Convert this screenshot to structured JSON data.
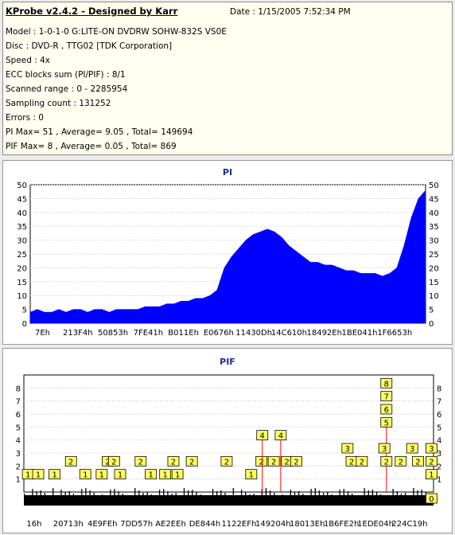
{
  "header": {
    "title": "KProbe v2.4.2 - Designed by Karr",
    "date_label": "Date : 1/15/2005 7:52:34 PM",
    "lines": [
      "Model : 1-0-1-0 G:LITE-ON DVDRW SOHW-832S  VS0E",
      "Disc : DVD-R , TTG02 [TDK Corporation]",
      "Speed : 4x",
      "ECC blocks sum (PI/PIF) : 8/1",
      "Scanned range : 0 - 2285954",
      "Sampling count : 131252",
      "Errors : 0",
      "PI Max= 51 , Average= 9.05 , Total= 149694",
      "PIF Max= 8 , Average= 0.05 , Total= 869"
    ]
  },
  "chart_data": [
    {
      "type": "area",
      "title": "PI",
      "ylim": [
        0,
        50
      ],
      "yticks": [
        0,
        5,
        10,
        15,
        20,
        25,
        30,
        35,
        40,
        45,
        50
      ],
      "x_tick_labels": [
        "7Eh",
        "213F4h",
        "50853h",
        "7FE41h",
        "B011Eh",
        "E0676h",
        "11430Dh",
        "14C610h",
        "18492Eh",
        "1BE041h",
        "1F6653h"
      ],
      "grid": true,
      "color": "#0000ff",
      "series": [
        {
          "values": [
            4,
            5,
            4,
            4,
            5,
            4,
            5,
            5,
            4,
            5,
            5,
            4,
            5,
            5,
            5,
            5,
            6,
            6,
            6,
            7,
            7,
            8,
            8,
            9,
            9,
            10,
            12,
            20,
            24,
            27,
            30,
            32,
            33,
            34,
            33,
            31,
            28,
            26,
            24,
            22,
            22,
            21,
            21,
            20,
            19,
            19,
            18,
            18,
            18,
            17,
            18,
            20,
            28,
            38,
            45,
            48
          ]
        }
      ]
    },
    {
      "type": "bar",
      "title": "PIF",
      "ylim": [
        0,
        9
      ],
      "yticks": [
        1,
        2,
        3,
        4,
        5,
        6,
        7,
        8
      ],
      "x_tick_labels": [
        "16h",
        "20713h",
        "4E9FEh",
        "7DD57h",
        "AE2EEh",
        "DE844h",
        "1122EFh",
        "149204h",
        "18013Eh",
        "1B6FE2h",
        "1EDE04h",
        "224C19h"
      ],
      "grid": true,
      "color": "#ff0000",
      "annotations": [
        {
          "label": "1",
          "x": 0.01
        },
        {
          "label": "1",
          "x": 0.035
        },
        {
          "label": "1",
          "x": 0.075
        },
        {
          "label": "2",
          "x": 0.115
        },
        {
          "label": "1",
          "x": 0.15
        },
        {
          "label": "1",
          "x": 0.19
        },
        {
          "label": "2",
          "x": 0.205
        },
        {
          "label": "2",
          "x": 0.22
        },
        {
          "label": "1",
          "x": 0.235
        },
        {
          "label": "2",
          "x": 0.285
        },
        {
          "label": "1",
          "x": 0.31
        },
        {
          "label": "1",
          "x": 0.345
        },
        {
          "label": "2",
          "x": 0.365
        },
        {
          "label": "1",
          "x": 0.375
        },
        {
          "label": "2",
          "x": 0.41
        },
        {
          "label": "2",
          "x": 0.495
        },
        {
          "label": "1",
          "x": 0.555
        },
        {
          "label": "2",
          "x": 0.58
        },
        {
          "label": "4",
          "x": 0.582
        },
        {
          "label": "2",
          "x": 0.61
        },
        {
          "label": "4",
          "x": 0.627
        },
        {
          "label": "2",
          "x": 0.642
        },
        {
          "label": "2",
          "x": 0.665
        },
        {
          "label": "3",
          "x": 0.79
        },
        {
          "label": "2",
          "x": 0.8
        },
        {
          "label": "2",
          "x": 0.825
        },
        {
          "label": "8",
          "x": 0.885
        },
        {
          "label": "7",
          "x": 0.885
        },
        {
          "label": "6",
          "x": 0.885
        },
        {
          "label": "5",
          "x": 0.885
        },
        {
          "label": "3",
          "x": 0.88
        },
        {
          "label": "2",
          "x": 0.885
        },
        {
          "label": "2",
          "x": 0.92
        },
        {
          "label": "3",
          "x": 0.948
        },
        {
          "label": "2",
          "x": 0.962
        },
        {
          "label": "3",
          "x": 0.995
        },
        {
          "label": "2",
          "x": 0.995
        },
        {
          "label": "1",
          "x": 0.995
        },
        {
          "label": "0",
          "x": 0.995
        }
      ]
    }
  ]
}
